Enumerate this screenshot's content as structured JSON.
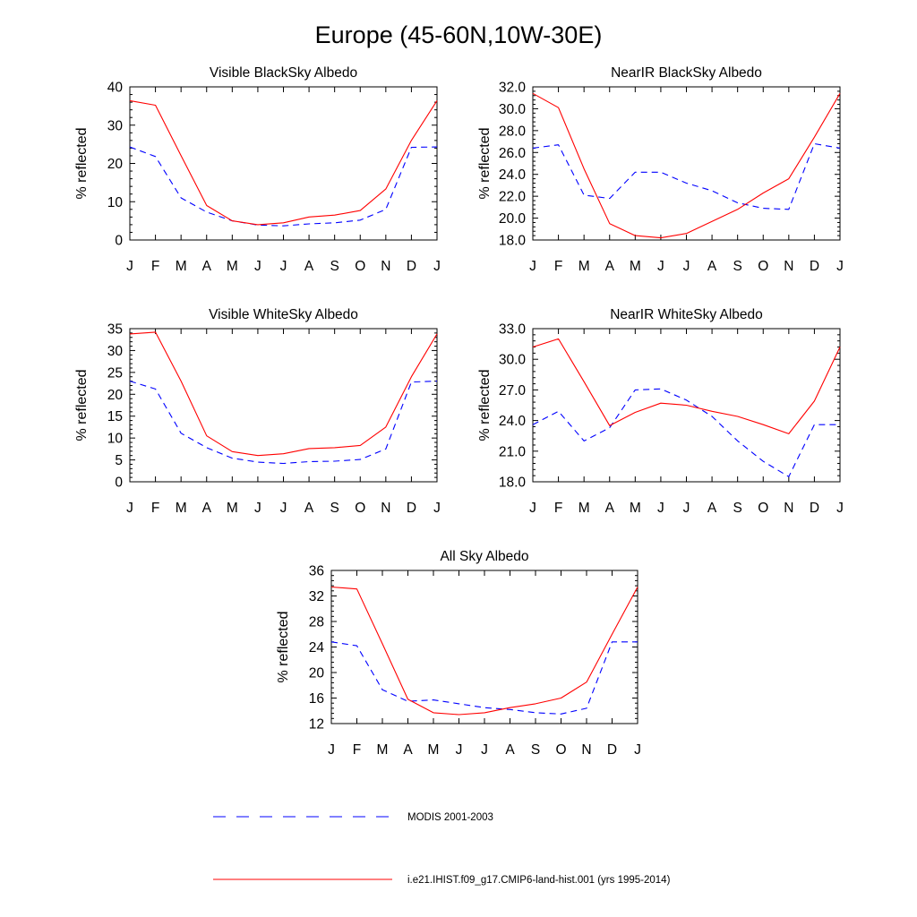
{
  "figure": {
    "title": "Europe (45-60N,10W-30E)",
    "legend": [
      {
        "label": "MODIS 2001-2003",
        "color": "#0000ff",
        "style": "dashed"
      },
      {
        "label": "i.e21.IHIST.f09_g17.CMIP6-land-hist.001 (yrs 1995-2014)",
        "color": "#ff0000",
        "style": "solid"
      }
    ]
  },
  "chart_data": [
    {
      "type": "line",
      "title": "Visible BlackSky Albedo",
      "ylabel": "% reflected",
      "xlabel": "",
      "categories": [
        "J",
        "F",
        "M",
        "A",
        "M",
        "J",
        "J",
        "A",
        "S",
        "O",
        "N",
        "D",
        "J"
      ],
      "ylim": [
        0,
        40
      ],
      "yticks": [
        0,
        10,
        20,
        30,
        40
      ],
      "ytick_labels": [
        "0",
        "10",
        "20",
        "30",
        "40"
      ],
      "grid": false,
      "series": [
        {
          "name": "MODIS 2001-2003",
          "color": "#0000ff",
          "dashed": true,
          "values": [
            24.3,
            21.8,
            11.0,
            7.3,
            5.0,
            3.9,
            3.7,
            4.2,
            4.5,
            5.2,
            8.0,
            24.2,
            24.3
          ]
        },
        {
          "name": "i.e21.IHIST.f09_g17.CMIP6-land-hist.001 (yrs 1995-2014)",
          "color": "#ff0000",
          "dashed": false,
          "values": [
            36.4,
            35.2,
            22.0,
            9.0,
            5.0,
            4.0,
            4.5,
            6.0,
            6.5,
            7.7,
            13.3,
            26.0,
            36.4
          ]
        }
      ]
    },
    {
      "type": "line",
      "title": "NearIR BlackSky Albedo",
      "ylabel": "% reflected",
      "xlabel": "",
      "categories": [
        "J",
        "F",
        "M",
        "A",
        "M",
        "J",
        "J",
        "A",
        "S",
        "O",
        "N",
        "D",
        "J"
      ],
      "ylim": [
        18,
        32
      ],
      "yticks": [
        18,
        20,
        22,
        24,
        26,
        28,
        30,
        32
      ],
      "ytick_labels": [
        "18.0",
        "20.0",
        "22.0",
        "24.0",
        "26.0",
        "28.0",
        "30.0",
        "32.0"
      ],
      "grid": false,
      "series": [
        {
          "name": "MODIS 2001-2003",
          "color": "#0000ff",
          "dashed": true,
          "values": [
            26.4,
            26.7,
            22.1,
            21.8,
            24.2,
            24.2,
            23.2,
            22.5,
            21.4,
            20.9,
            20.8,
            26.8,
            26.4
          ]
        },
        {
          "name": "i.e21.IHIST.f09_g17.CMIP6-land-hist.001 (yrs 1995-2014)",
          "color": "#ff0000",
          "dashed": false,
          "values": [
            31.4,
            30.1,
            24.5,
            19.5,
            18.4,
            18.2,
            18.6,
            19.7,
            20.8,
            22.3,
            23.6,
            27.4,
            31.4
          ]
        }
      ]
    },
    {
      "type": "line",
      "title": "Visible WhiteSky Albedo",
      "ylabel": "% reflected",
      "xlabel": "",
      "categories": [
        "J",
        "F",
        "M",
        "A",
        "M",
        "J",
        "J",
        "A",
        "S",
        "O",
        "N",
        "D",
        "J"
      ],
      "ylim": [
        0,
        35
      ],
      "yticks": [
        0,
        5,
        10,
        15,
        20,
        25,
        30,
        35
      ],
      "ytick_labels": [
        "0",
        "5",
        "10",
        "15",
        "20",
        "25",
        "30",
        "35"
      ],
      "grid": false,
      "series": [
        {
          "name": "MODIS 2001-2003",
          "color": "#0000ff",
          "dashed": true,
          "values": [
            23.0,
            21.2,
            11.1,
            7.8,
            5.4,
            4.5,
            4.2,
            4.6,
            4.7,
            5.1,
            7.5,
            22.8,
            23.0
          ]
        },
        {
          "name": "i.e21.IHIST.f09_g17.CMIP6-land-hist.001 (yrs 1995-2014)",
          "color": "#ff0000",
          "dashed": false,
          "values": [
            33.8,
            34.2,
            23.0,
            10.5,
            6.9,
            6.0,
            6.4,
            7.6,
            7.8,
            8.3,
            12.5,
            24.0,
            33.8
          ]
        }
      ]
    },
    {
      "type": "line",
      "title": "NearIR WhiteSky Albedo",
      "ylabel": "% reflected",
      "xlabel": "",
      "categories": [
        "J",
        "F",
        "M",
        "A",
        "M",
        "J",
        "J",
        "A",
        "S",
        "O",
        "N",
        "D",
        "J"
      ],
      "ylim": [
        18,
        33
      ],
      "yticks": [
        18,
        21,
        24,
        27,
        30,
        33
      ],
      "ytick_labels": [
        "18.0",
        "21.0",
        "24.0",
        "27.0",
        "30.0",
        "33.0"
      ],
      "grid": false,
      "series": [
        {
          "name": "MODIS 2001-2003",
          "color": "#0000ff",
          "dashed": true,
          "values": [
            23.6,
            24.9,
            22.0,
            23.3,
            27.0,
            27.1,
            26.0,
            24.4,
            22.0,
            20.0,
            18.5,
            23.6,
            23.6
          ]
        },
        {
          "name": "i.e21.IHIST.f09_g17.CMIP6-land-hist.001 (yrs 1995-2014)",
          "color": "#ff0000",
          "dashed": false,
          "values": [
            31.2,
            32.0,
            27.8,
            23.5,
            24.8,
            25.7,
            25.5,
            24.9,
            24.4,
            23.6,
            22.7,
            25.9,
            31.2
          ]
        }
      ]
    },
    {
      "type": "line",
      "title": "All Sky Albedo",
      "ylabel": "% reflected",
      "xlabel": "",
      "categories": [
        "J",
        "F",
        "M",
        "A",
        "M",
        "J",
        "J",
        "A",
        "S",
        "O",
        "N",
        "D",
        "J"
      ],
      "ylim": [
        12,
        36
      ],
      "yticks": [
        12,
        16,
        20,
        24,
        28,
        32,
        36
      ],
      "ytick_labels": [
        "12",
        "16",
        "20",
        "24",
        "28",
        "32",
        "36"
      ],
      "grid": false,
      "series": [
        {
          "name": "MODIS 2001-2003",
          "color": "#0000ff",
          "dashed": true,
          "values": [
            24.8,
            24.2,
            17.3,
            15.5,
            15.7,
            15.1,
            14.5,
            14.2,
            13.7,
            13.5,
            14.4,
            24.8,
            24.8
          ]
        },
        {
          "name": "i.e21.IHIST.f09_g17.CMIP6-land-hist.001 (yrs 1995-2014)",
          "color": "#ff0000",
          "dashed": false,
          "values": [
            33.4,
            33.1,
            24.5,
            15.8,
            13.7,
            13.4,
            13.7,
            14.5,
            15.1,
            16.0,
            18.5,
            26.0,
            33.4
          ]
        }
      ]
    }
  ]
}
